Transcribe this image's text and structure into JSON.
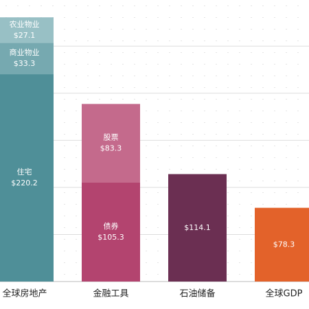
{
  "chart_data": {
    "type": "stacked-bar",
    "categories": [
      "全球房地产",
      "金融工具",
      "石油储备",
      "全球GDP"
    ],
    "series": [
      {
        "name": "住宅",
        "color": "#4f8f98",
        "values": [
          220.2,
          null,
          null,
          null
        ],
        "value_labels": [
          "$220.2",
          null,
          null,
          null
        ]
      },
      {
        "name": "商业物业",
        "color": "#76a9b0",
        "values": [
          33.3,
          null,
          null,
          null
        ],
        "value_labels": [
          "$33.3",
          null,
          null,
          null
        ]
      },
      {
        "name": "农业物业",
        "color": "#98c0c5",
        "values": [
          27.1,
          null,
          null,
          null
        ],
        "value_labels": [
          "$27.1",
          null,
          null,
          null
        ]
      },
      {
        "name": "债券",
        "color": "#b3446f",
        "values": [
          null,
          105.3,
          null,
          null
        ],
        "value_labels": [
          null,
          "$105.3",
          null,
          null
        ]
      },
      {
        "name": "股票",
        "color": "#c46a8c",
        "values": [
          null,
          83.3,
          null,
          null
        ],
        "value_labels": [
          null,
          "$83.3",
          null,
          null
        ]
      },
      {
        "color": "#6b2f52",
        "values": [
          null,
          null,
          114.1,
          null
        ],
        "value_labels": [
          null,
          null,
          "$114.1",
          null
        ]
      },
      {
        "color": "#e3622a",
        "values": [
          null,
          null,
          null,
          78.3
        ],
        "value_labels": [
          null,
          null,
          null,
          "$78.3"
        ]
      }
    ],
    "ylim": [
      0,
      299
    ],
    "yticks": [
      0,
      50,
      100,
      150,
      200,
      250
    ],
    "grid": true
  }
}
